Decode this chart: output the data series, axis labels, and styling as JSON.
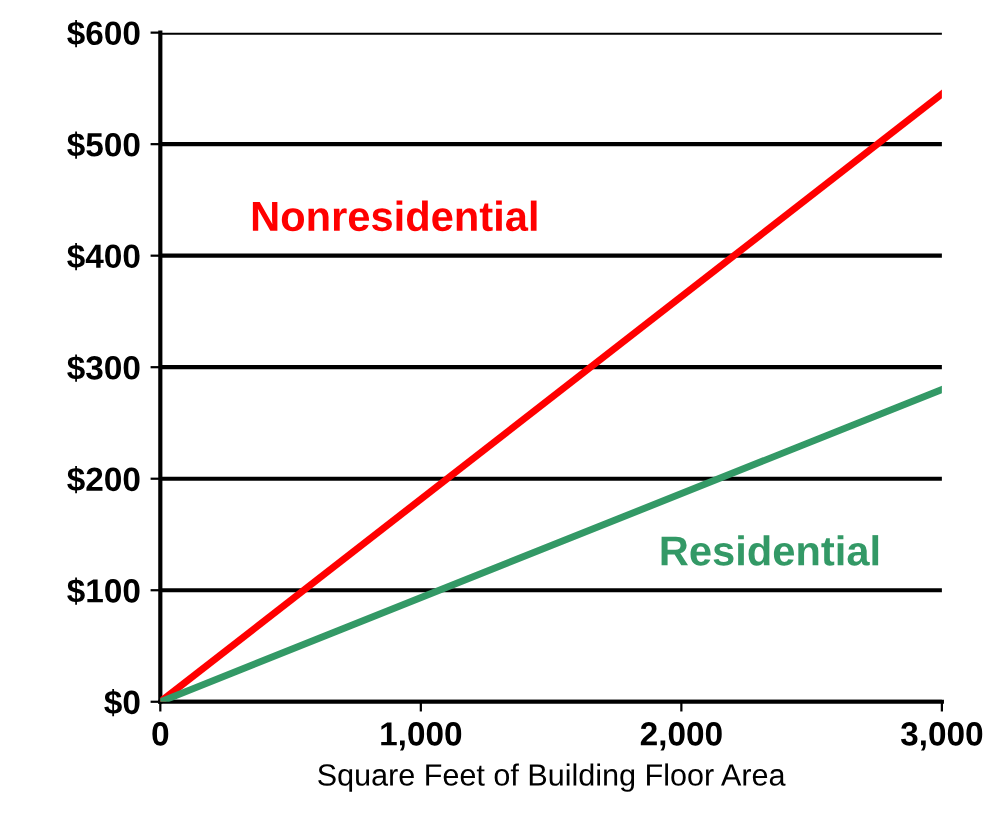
{
  "chart_data": {
    "type": "line",
    "xlabel": "Square Feet of Building Floor Area",
    "x": [
      0,
      3000
    ],
    "series": [
      {
        "name": "Nonresidential",
        "color": "#ff0000",
        "values": [
          0,
          545
        ]
      },
      {
        "name": "Residential",
        "color": "#339966",
        "values": [
          0,
          280
        ]
      }
    ],
    "xlim": [
      0,
      3000
    ],
    "xticks": [
      {
        "value": 0,
        "label": "0"
      },
      {
        "value": 1000,
        "label": "1,000"
      },
      {
        "value": 2000,
        "label": "2,000"
      },
      {
        "value": 3000,
        "label": "3,000"
      }
    ],
    "ylim": [
      0,
      600
    ],
    "yticks": [
      {
        "value": 0,
        "label": "$0"
      },
      {
        "value": 100,
        "label": "$100"
      },
      {
        "value": 200,
        "label": "$200"
      },
      {
        "value": 300,
        "label": "$300"
      },
      {
        "value": 400,
        "label": "$400"
      },
      {
        "value": 500,
        "label": "$500"
      },
      {
        "value": 600,
        "label": "$600"
      }
    ],
    "grid": "y",
    "legend": false,
    "marker": "none",
    "line_style": "solid"
  }
}
